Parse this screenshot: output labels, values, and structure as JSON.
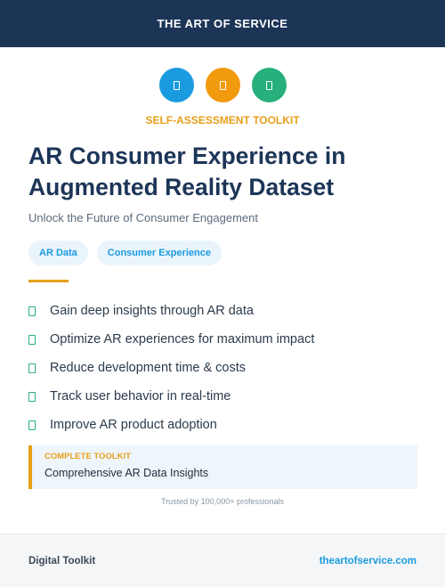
{
  "header": {
    "brand": "THE ART OF SERVICE"
  },
  "icons": [
    {
      "name": "document-icon",
      "color": "#1a9be0"
    },
    {
      "name": "document-icon",
      "color": "#f29a0e"
    },
    {
      "name": "document-icon",
      "color": "#27b07c"
    }
  ],
  "eyebrow": "SELF-ASSESSMENT TOOLKIT",
  "title": "AR Consumer Experience in Augmented Reality Dataset",
  "subtitle": "Unlock the Future of Consumer Engagement",
  "tags": [
    "AR Data",
    "Consumer Experience"
  ],
  "benefits": [
    "Gain deep insights through AR data",
    "Optimize AR experiences for maximum impact",
    "Reduce development time & costs",
    "Track user behavior in real-time",
    "Improve AR product adoption"
  ],
  "callout": {
    "label": "COMPLETE TOOLKIT",
    "text": "Comprehensive AR Data Insights"
  },
  "trusted": "Trusted by 100,000+ professionals",
  "footer": {
    "left": "Digital Toolkit",
    "right": "theartofservice.com"
  }
}
